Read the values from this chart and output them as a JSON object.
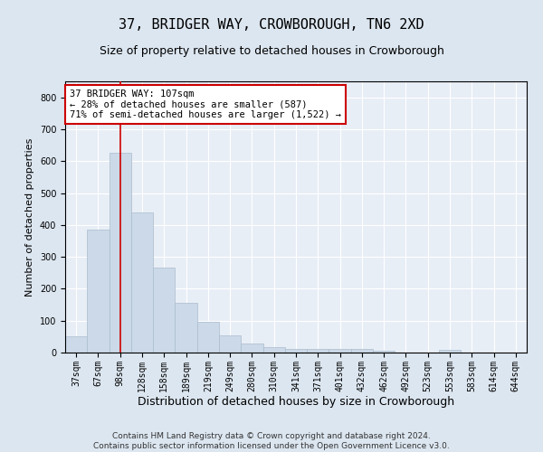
{
  "title": "37, BRIDGER WAY, CROWBOROUGH, TN6 2XD",
  "subtitle": "Size of property relative to detached houses in Crowborough",
  "xlabel": "Distribution of detached houses by size in Crowborough",
  "ylabel": "Number of detached properties",
  "categories": [
    "37sqm",
    "67sqm",
    "98sqm",
    "128sqm",
    "158sqm",
    "189sqm",
    "219sqm",
    "249sqm",
    "280sqm",
    "310sqm",
    "341sqm",
    "371sqm",
    "401sqm",
    "432sqm",
    "462sqm",
    "492sqm",
    "523sqm",
    "553sqm",
    "583sqm",
    "614sqm",
    "644sqm"
  ],
  "values": [
    50,
    385,
    625,
    440,
    265,
    155,
    97,
    55,
    28,
    18,
    12,
    12,
    12,
    10,
    5,
    0,
    0,
    8,
    0,
    0,
    0
  ],
  "bar_color": "#ccd9e8",
  "bar_edge_color": "#aabccc",
  "vline_x": 2,
  "vline_color": "#cc0000",
  "annotation_line1": "37 BRIDGER WAY: 107sqm",
  "annotation_line2": "← 28% of detached houses are smaller (587)",
  "annotation_line3": "71% of semi-detached houses are larger (1,522) →",
  "annotation_box_color": "#ffffff",
  "annotation_box_edge_color": "#cc0000",
  "ylim": [
    0,
    850
  ],
  "yticks": [
    0,
    100,
    200,
    300,
    400,
    500,
    600,
    700,
    800
  ],
  "background_color": "#dce6f0",
  "plot_background_color": "#e8eef6",
  "grid_color": "#ffffff",
  "footer_line1": "Contains HM Land Registry data © Crown copyright and database right 2024.",
  "footer_line2": "Contains public sector information licensed under the Open Government Licence v3.0.",
  "title_fontsize": 11,
  "subtitle_fontsize": 9,
  "xlabel_fontsize": 9,
  "ylabel_fontsize": 8,
  "tick_fontsize": 7,
  "annotation_fontsize": 7.5,
  "footer_fontsize": 6.5
}
